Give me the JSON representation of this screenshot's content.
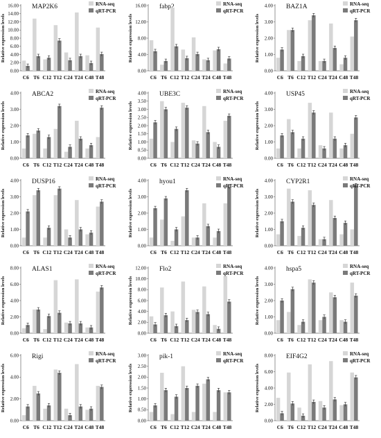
{
  "colors": {
    "rna_seq": "#d6d6d6",
    "qrt_pcr": "#7a7a7a",
    "axis": "#666666",
    "error": "#222222"
  },
  "legend": [
    "RNA-seq",
    "qRT-PCR"
  ],
  "ylabel": "Relative expression levels",
  "chart_data": [
    {
      "type": "bar",
      "title": "MAP2K6",
      "categories": [
        "C6",
        "T6",
        "C12",
        "T12",
        "C24",
        "T24",
        "C48",
        "T48"
      ],
      "ylim": [
        0,
        16
      ],
      "yticks": [
        "0.00",
        "2.00",
        "4.00",
        "6.00",
        "8.00",
        "10.00",
        "12.00",
        "14.00",
        "16.00"
      ],
      "ylabel": "Relative expression levels",
      "legend": "top-right",
      "series": [
        {
          "name": "RNA-seq",
          "values": [
            2.5,
            12.8,
            2.8,
            11.2,
            4.5,
            14.3,
            3.8,
            10.6
          ]
        },
        {
          "name": "qRT-PCR",
          "values": [
            1.2,
            3.6,
            3.2,
            7.4,
            2.6,
            3.6,
            1.9,
            4.1
          ]
        }
      ]
    },
    {
      "type": "bar",
      "title": "fabp2",
      "categories": [
        "C6",
        "T6",
        "C12",
        "T12",
        "C24",
        "T24",
        "C48",
        "T48"
      ],
      "ylim": [
        0,
        16
      ],
      "yticks": [
        "0.00",
        "4.00",
        "8.00",
        "12.00",
        "16.00"
      ],
      "ylabel": "Relative expression levels",
      "legend": "top-right",
      "series": [
        {
          "name": "RNA-seq",
          "values": [
            7.5,
            1.5,
            15.5,
            5.2,
            8.2,
            2.8,
            5.0,
            1.8
          ]
        },
        {
          "name": "qRT-PCR",
          "values": [
            4.8,
            2.4,
            6.0,
            3.1,
            4.1,
            2.6,
            5.3,
            3.0
          ]
        }
      ]
    },
    {
      "type": "bar",
      "title": "BAZ1A",
      "categories": [
        "C6",
        "T6",
        "C12",
        "T12",
        "C24",
        "T24",
        "C48",
        "T48"
      ],
      "ylim": [
        0,
        4
      ],
      "yticks": [
        "0.00",
        "1.00",
        "2.00",
        "3.00",
        "4.00"
      ],
      "ylabel": "Relative expression levels",
      "legend": "top-right",
      "series": [
        {
          "name": "RNA-seq",
          "values": [
            0.8,
            2.5,
            0.6,
            3.1,
            0.6,
            2.9,
            0.4,
            2.1
          ]
        },
        {
          "name": "qRT-PCR",
          "values": [
            1.3,
            2.5,
            0.9,
            3.4,
            0.6,
            1.4,
            0.8,
            3.1
          ]
        }
      ]
    },
    {
      "type": "bar",
      "title": "ABCA2",
      "categories": [
        "C6",
        "T6",
        "C12",
        "T12",
        "C24",
        "T24",
        "C48",
        "T48"
      ],
      "ylim": [
        0,
        4
      ],
      "yticks": [
        "0.00",
        "1.00",
        "2.00",
        "3.00",
        "4.00"
      ],
      "ylabel": "Relative expression levels",
      "legend": "top-right",
      "series": [
        {
          "name": "RNA-seq",
          "values": [
            0.6,
            1.5,
            0.6,
            1.8,
            0.4,
            2.3,
            0.6,
            1.3
          ]
        },
        {
          "name": "qRT-PCR",
          "values": [
            1.4,
            1.7,
            1.3,
            3.2,
            0.7,
            1.2,
            0.8,
            3.1
          ]
        }
      ]
    },
    {
      "type": "bar",
      "title": "UBE3C",
      "categories": [
        "C6",
        "T6",
        "C12",
        "T12",
        "C24",
        "T24",
        "C48",
        "T48"
      ],
      "ylim": [
        0,
        4
      ],
      "yticks": [
        "0.00",
        "0.50",
        "1.00",
        "1.50",
        "2.00",
        "2.50",
        "3.00",
        "3.50",
        "4.00"
      ],
      "ylabel": "Relative expression levels",
      "legend": "top-right",
      "series": [
        {
          "name": "RNA-seq",
          "values": [
            1.2,
            3.5,
            1.0,
            3.4,
            1.1,
            3.2,
            1.0,
            2.3
          ]
        },
        {
          "name": "qRT-PCR",
          "values": [
            2.2,
            3.0,
            1.8,
            3.1,
            0.9,
            1.6,
            0.7,
            2.6
          ]
        }
      ]
    },
    {
      "type": "bar",
      "title": "USP45",
      "categories": [
        "C6",
        "T6",
        "C12",
        "T12",
        "C24",
        "T24",
        "C48",
        "T48"
      ],
      "ylim": [
        0,
        4
      ],
      "yticks": [
        "0.00",
        "1.00",
        "2.00",
        "3.00",
        "4.00"
      ],
      "ylabel": "Relative expression levels",
      "legend": "top-right",
      "series": [
        {
          "name": "RNA-seq",
          "values": [
            0.6,
            2.4,
            0.6,
            3.4,
            0.8,
            2.8,
            0.6,
            1.5
          ]
        },
        {
          "name": "qRT-PCR",
          "values": [
            1.4,
            1.6,
            1.2,
            2.8,
            0.6,
            1.2,
            0.8,
            2.5
          ]
        }
      ]
    },
    {
      "type": "bar",
      "title": "DUSP16",
      "categories": [
        "C6",
        "T6",
        "C12",
        "T12",
        "C24",
        "T24",
        "C48",
        "T48"
      ],
      "ylim": [
        0,
        4
      ],
      "yticks": [
        "0.00",
        "1.00",
        "2.00",
        "3.00",
        "4.00"
      ],
      "ylabel": "Relative expression levels",
      "legend": "top-right",
      "series": [
        {
          "name": "RNA-seq",
          "values": [
            0.5,
            3.1,
            0.5,
            3.1,
            1.0,
            2.8,
            0.7,
            2.4
          ]
        },
        {
          "name": "qRT-PCR",
          "values": [
            2.1,
            3.4,
            1.1,
            3.5,
            0.5,
            1.0,
            0.8,
            2.7
          ]
        }
      ]
    },
    {
      "type": "bar",
      "title": "hyou1",
      "categories": [
        "C6",
        "T6",
        "C12",
        "T12",
        "C24",
        "T24",
        "C48",
        "T48"
      ],
      "ylim": [
        0,
        4
      ],
      "yticks": [
        "0.00",
        "1.00",
        "2.00",
        "3.00",
        "4.00"
      ],
      "ylabel": "Relative expression levels",
      "legend": "top-right",
      "series": [
        {
          "name": "RNA-seq",
          "values": [
            0.5,
            1.6,
            0.3,
            1.8,
            0.5,
            2.6,
            0.5,
            2.6
          ]
        },
        {
          "name": "qRT-PCR",
          "values": [
            2.3,
            2.9,
            1.0,
            3.4,
            0.5,
            1.2,
            0.9,
            3.6
          ]
        }
      ]
    },
    {
      "type": "bar",
      "title": "CYP2R1",
      "categories": [
        "C6",
        "T6",
        "C12",
        "T12",
        "C24",
        "T24",
        "C48",
        "T48"
      ],
      "ylim": [
        0,
        4
      ],
      "yticks": [
        "0.00",
        "1.00",
        "2.00",
        "3.00",
        "4.00"
      ],
      "ylabel": "Relative expression levels",
      "legend": "top-right",
      "series": [
        {
          "name": "RNA-seq",
          "values": [
            0.7,
            3.5,
            0.6,
            3.4,
            0.4,
            2.8,
            0.7,
            1.0
          ]
        },
        {
          "name": "qRT-PCR",
          "values": [
            1.5,
            2.7,
            1.1,
            2.5,
            0.4,
            1.7,
            1.4,
            3.7
          ]
        }
      ]
    },
    {
      "type": "bar",
      "title": "ALAS1",
      "categories": [
        "C6",
        "T6",
        "C12",
        "T12",
        "C24",
        "T24",
        "C48",
        "T48"
      ],
      "ylim": [
        0,
        8
      ],
      "yticks": [
        "0.00",
        "2.00",
        "4.00",
        "6.00",
        "8.00"
      ],
      "ylabel": "Relative expression levels",
      "legend": "top-right",
      "series": [
        {
          "name": "RNA-seq",
          "values": [
            0.6,
            2.9,
            0.5,
            6.5,
            1.3,
            6.6,
            0.7,
            5.1
          ]
        },
        {
          "name": "qRT-PCR",
          "values": [
            1.0,
            2.9,
            2.1,
            2.5,
            1.2,
            1.2,
            0.7,
            5.6
          ]
        }
      ]
    },
    {
      "type": "bar",
      "title": "Flo2",
      "categories": [
        "C6",
        "T6",
        "C12",
        "T12",
        "C24",
        "T24",
        "C48",
        "T48"
      ],
      "ylim": [
        0,
        12
      ],
      "yticks": [
        "0.00",
        "2.00",
        "4.00",
        "6.00",
        "8.00",
        "10.00",
        "12.00"
      ],
      "ylabel": "Relative expression levels",
      "legend": "top-right",
      "series": [
        {
          "name": "RNA-seq",
          "values": [
            3.1,
            8.4,
            4.0,
            9.5,
            4.3,
            8.6,
            1.5,
            10.5
          ]
        },
        {
          "name": "qRT-PCR",
          "values": [
            1.6,
            3.3,
            1.3,
            2.4,
            3.9,
            3.5,
            0.8,
            5.8
          ]
        }
      ]
    },
    {
      "type": "bar",
      "title": "hspa5",
      "categories": [
        "C6",
        "T6",
        "C12",
        "T12",
        "C24",
        "T24",
        "C48",
        "T48"
      ],
      "ylim": [
        0,
        4
      ],
      "yticks": [
        "0.00",
        "1.00",
        "2.00",
        "3.00",
        "4.00"
      ],
      "ylabel": "Relative expression levels",
      "legend": "top-right",
      "series": [
        {
          "name": "RNA-seq",
          "values": [
            0.8,
            1.3,
            0.5,
            3.3,
            0.8,
            2.5,
            0.8,
            3.1
          ]
        },
        {
          "name": "qRT-PCR",
          "values": [
            2.0,
            2.7,
            0.7,
            3.1,
            1.0,
            2.2,
            0.7,
            2.3
          ]
        }
      ]
    },
    {
      "type": "bar",
      "title": "Rigi",
      "categories": [
        "C6",
        "T6",
        "C12",
        "T12",
        "C24",
        "T24",
        "C48",
        "T48"
      ],
      "ylim": [
        0,
        6
      ],
      "yticks": [
        "0.00",
        "2.00",
        "4.00",
        "6.00"
      ],
      "ylabel": "Relative expression levels",
      "legend": "top-right",
      "series": [
        {
          "name": "RNA-seq",
          "values": [
            0.5,
            3.2,
            1.1,
            4.7,
            1.1,
            5.2,
            1.0,
            3.2
          ]
        },
        {
          "name": "qRT-PCR",
          "values": [
            1.3,
            2.5,
            1.4,
            4.4,
            0.5,
            1.3,
            1.1,
            3.1
          ]
        }
      ]
    },
    {
      "type": "bar",
      "title": "pik-1",
      "categories": [
        "C6",
        "T6",
        "C12",
        "T12",
        "C24",
        "T24",
        "C48",
        "T48"
      ],
      "ylim": [
        0,
        3
      ],
      "yticks": [
        "0.00",
        "0.50",
        "1.00",
        "1.50",
        "2.00",
        "2.50",
        "3.00"
      ],
      "ylabel": "Relative expression levels",
      "legend": "top-right",
      "series": [
        {
          "name": "RNA-seq",
          "values": [
            0.4,
            2.2,
            0.3,
            2.5,
            0.4,
            1.7,
            0.4,
            1.3
          ]
        },
        {
          "name": "qRT-PCR",
          "values": [
            0.7,
            1.4,
            1.1,
            1.5,
            1.6,
            1.9,
            1.4,
            1.3
          ]
        }
      ]
    },
    {
      "type": "bar",
      "title": "EIF4G2",
      "categories": [
        "C6",
        "T6",
        "C12",
        "T12",
        "C24",
        "T24",
        "C48",
        "T48"
      ],
      "ylim": [
        0,
        8
      ],
      "yticks": [
        "0.00",
        "2.00",
        "4.00",
        "6.00",
        "8.00"
      ],
      "ylabel": "Relative expression levels",
      "legend": "top-right",
      "series": [
        {
          "name": "RNA-seq",
          "values": [
            2.8,
            5.9,
            1.6,
            6.9,
            2.4,
            7.3,
            1.9,
            5.9
          ]
        },
        {
          "name": "qRT-PCR",
          "values": [
            0.9,
            2.1,
            0.6,
            2.3,
            1.6,
            2.6,
            2.0,
            5.3
          ]
        }
      ]
    }
  ]
}
